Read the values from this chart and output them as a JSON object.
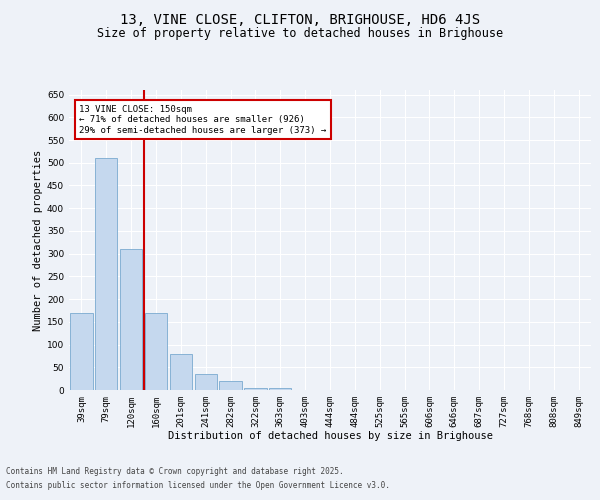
{
  "title": "13, VINE CLOSE, CLIFTON, BRIGHOUSE, HD6 4JS",
  "subtitle": "Size of property relative to detached houses in Brighouse",
  "xlabel": "Distribution of detached houses by size in Brighouse",
  "ylabel": "Number of detached properties",
  "categories": [
    "39sqm",
    "79sqm",
    "120sqm",
    "160sqm",
    "201sqm",
    "241sqm",
    "282sqm",
    "322sqm",
    "363sqm",
    "403sqm",
    "444sqm",
    "484sqm",
    "525sqm",
    "565sqm",
    "606sqm",
    "646sqm",
    "687sqm",
    "727sqm",
    "768sqm",
    "808sqm",
    "849sqm"
  ],
  "values": [
    170,
    510,
    310,
    170,
    80,
    35,
    20,
    5,
    5,
    1,
    0,
    0,
    0,
    0,
    0,
    0,
    0,
    0,
    0,
    0,
    1
  ],
  "bar_color": "#c5d8ee",
  "bar_edge_color": "#7aaad0",
  "annotation_text": "13 VINE CLOSE: 150sqm\n← 71% of detached houses are smaller (926)\n29% of semi-detached houses are larger (373) →",
  "annotation_box_color": "#ffffff",
  "annotation_box_edge_color": "#cc0000",
  "vline_color": "#cc0000",
  "ylim": [
    0,
    660
  ],
  "yticks": [
    0,
    50,
    100,
    150,
    200,
    250,
    300,
    350,
    400,
    450,
    500,
    550,
    600,
    650
  ],
  "background_color": "#eef2f8",
  "grid_color": "#ffffff",
  "footer_line1": "Contains HM Land Registry data © Crown copyright and database right 2025.",
  "footer_line2": "Contains public sector information licensed under the Open Government Licence v3.0.",
  "title_fontsize": 10,
  "subtitle_fontsize": 8.5,
  "axis_label_fontsize": 7.5,
  "tick_fontsize": 6.5
}
